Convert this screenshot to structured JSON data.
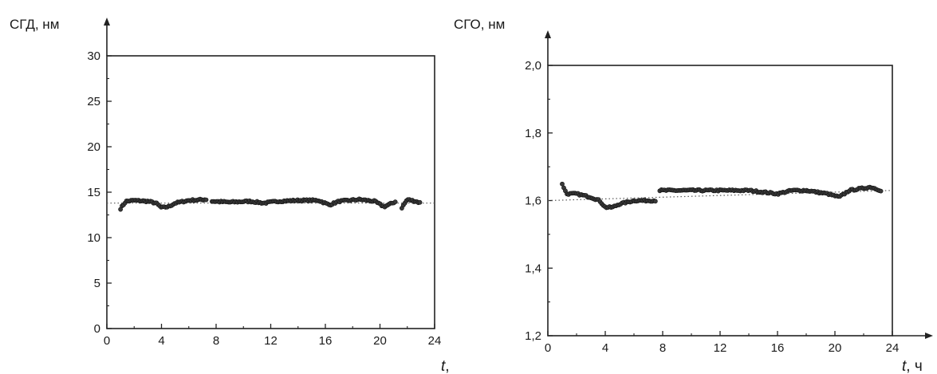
{
  "chart_data": [
    {
      "type": "scatter",
      "ylabel": "СГД, нм",
      "xlabel_var": "t",
      "xlabel_suffix": ",",
      "xlim": [
        0,
        24
      ],
      "ylim": [
        0,
        30
      ],
      "x_ticks": [
        "0",
        "4",
        "8",
        "12",
        "16",
        "20",
        "24"
      ],
      "y_ticks": [
        "0",
        "5",
        "10",
        "15",
        "20",
        "25",
        "30"
      ],
      "reference_line": 13.8,
      "grid": false,
      "series": [
        {
          "segments": [
            {
              "x0": 1.0,
              "x1": 7.3,
              "keys": [
                [
                  1.0,
                  13.2
                ],
                [
                  1.4,
                  14.0
                ],
                [
                  2.0,
                  14.1
                ],
                [
                  3.0,
                  14.0
                ],
                [
                  3.6,
                  13.8
                ],
                [
                  4.0,
                  13.3
                ],
                [
                  4.5,
                  13.4
                ],
                [
                  5.0,
                  13.8
                ],
                [
                  6.0,
                  14.1
                ],
                [
                  7.3,
                  14.2
                ]
              ]
            },
            {
              "x0": 7.7,
              "x1": 21.2,
              "keys": [
                [
                  7.7,
                  14.0
                ],
                [
                  9.0,
                  13.9
                ],
                [
                  10.5,
                  14.0
                ],
                [
                  11.5,
                  13.8
                ],
                [
                  12.5,
                  14.0
                ],
                [
                  14.0,
                  14.1
                ],
                [
                  15.5,
                  14.1
                ],
                [
                  16.3,
                  13.6
                ],
                [
                  17.0,
                  14.0
                ],
                [
                  18.5,
                  14.2
                ],
                [
                  19.6,
                  14.0
                ],
                [
                  20.3,
                  13.4
                ],
                [
                  21.2,
                  14.0
                ]
              ]
            },
            {
              "x0": 21.6,
              "x1": 23.0,
              "keys": [
                [
                  21.6,
                  13.3
                ],
                [
                  22.0,
                  14.2
                ],
                [
                  22.6,
                  14.0
                ],
                [
                  23.0,
                  13.8
                ]
              ]
            }
          ]
        }
      ]
    },
    {
      "type": "scatter",
      "ylabel": "СГО, нм",
      "xlabel_var": "t",
      "xlabel_suffix": ", ч",
      "xlim": [
        0,
        24
      ],
      "ylim": [
        1.2,
        2.0
      ],
      "x_ticks": [
        "0",
        "4",
        "8",
        "12",
        "16",
        "20",
        "24"
      ],
      "y_ticks": [
        "1,2",
        "1,4",
        "1,6",
        "1,8",
        "2,0"
      ],
      "reference_line_from": 1.6,
      "reference_line_to": 1.63,
      "grid": false,
      "series": [
        {
          "segments": [
            {
              "x0": 1.0,
              "x1": 7.5,
              "keys": [
                [
                  1.0,
                  1.65
                ],
                [
                  1.3,
                  1.62
                ],
                [
                  2.0,
                  1.62
                ],
                [
                  3.0,
                  1.61
                ],
                [
                  3.6,
                  1.6
                ],
                [
                  4.0,
                  1.58
                ],
                [
                  4.5,
                  1.58
                ],
                [
                  5.0,
                  1.59
                ],
                [
                  6.0,
                  1.6
                ],
                [
                  7.5,
                  1.6
                ]
              ]
            },
            {
              "x0": 7.8,
              "x1": 23.2,
              "keys": [
                [
                  7.8,
                  1.63
                ],
                [
                  10.0,
                  1.63
                ],
                [
                  12.0,
                  1.63
                ],
                [
                  14.0,
                  1.63
                ],
                [
                  16.0,
                  1.62
                ],
                [
                  17.0,
                  1.63
                ],
                [
                  18.0,
                  1.63
                ],
                [
                  19.5,
                  1.62
                ],
                [
                  20.3,
                  1.61
                ],
                [
                  21.0,
                  1.63
                ],
                [
                  22.5,
                  1.64
                ],
                [
                  23.2,
                  1.63
                ]
              ]
            }
          ]
        }
      ]
    }
  ]
}
